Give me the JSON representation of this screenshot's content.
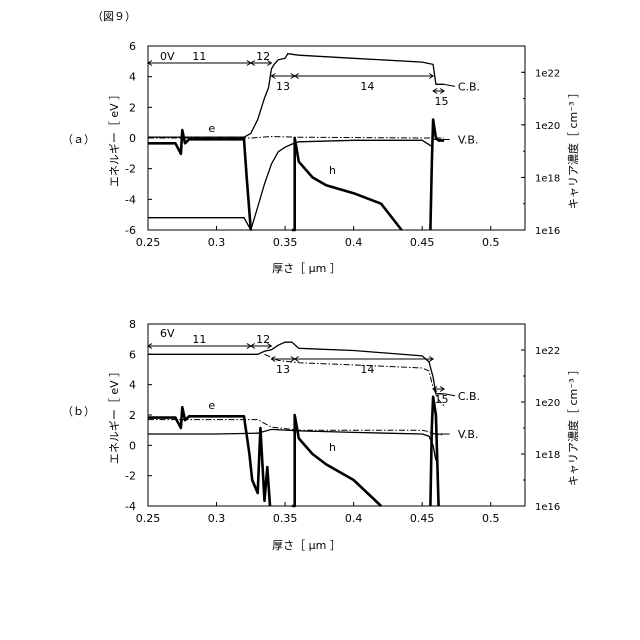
{
  "figure_label": "（図９）",
  "chart_data": [
    {
      "type": "line",
      "panel_label": "（ａ）",
      "voltage_label": "0V",
      "x_ticks": [
        "0.25",
        "0.3",
        "0.35",
        "0.4",
        "0.45",
        "0.5"
      ],
      "xlim": [
        0.25,
        0.525
      ],
      "y_left_ticks": [
        "6",
        "4",
        "2",
        "0",
        "-2",
        "-4",
        "-6"
      ],
      "ylim_left": [
        -6,
        6
      ],
      "y_right_ticks": [
        "1e22",
        "1e20",
        "1e18",
        "1e16"
      ],
      "ylim_right_log10": [
        16,
        23
      ],
      "xlabel": "厚さ［ μm ］",
      "ylabel_left": "エネルギー［ eV ］",
      "ylabel_right": "キャリア濃度［ cm⁻³ ］",
      "annotations": {
        "regions": [
          "11",
          "12",
          "13",
          "14",
          "15"
        ],
        "cb": "C.B.",
        "vb": "V.B.",
        "electron": "e",
        "hole": "h"
      },
      "series": [
        {
          "name": "C.B.",
          "axis": "left",
          "style": "solid",
          "x": [
            0.25,
            0.32,
            0.325,
            0.33,
            0.335,
            0.338,
            0.34,
            0.342,
            0.345,
            0.35,
            0.352,
            0.36,
            0.4,
            0.45,
            0.458,
            0.46,
            0.466
          ],
          "y": [
            0.05,
            0.05,
            0.3,
            1.2,
            2.6,
            3.3,
            4.5,
            4.8,
            5.1,
            5.2,
            5.5,
            5.4,
            5.2,
            4.95,
            4.8,
            3.5,
            3.5
          ]
        },
        {
          "name": "V.B.",
          "axis": "left",
          "style": "solid",
          "x": [
            0.25,
            0.32,
            0.325,
            0.33,
            0.335,
            0.34,
            0.345,
            0.35,
            0.355,
            0.36,
            0.4,
            0.45,
            0.458
          ],
          "y": [
            -5.2,
            -5.2,
            -6,
            -4.5,
            -3,
            -1.7,
            -0.9,
            -0.6,
            -0.4,
            -0.25,
            -0.15,
            -0.15,
            -0.6
          ]
        },
        {
          "name": "Fermi",
          "axis": "left",
          "style": "dashdot",
          "x": [
            0.25,
            0.325,
            0.34,
            0.36,
            0.45,
            0.466
          ],
          "y": [
            0.0,
            0.0,
            0.1,
            0.05,
            0.0,
            0.0
          ]
        },
        {
          "name": "e",
          "axis": "right",
          "style": "bold",
          "x": [
            0.25,
            0.27,
            0.274,
            0.275,
            0.277,
            0.28,
            0.3,
            0.32,
            0.322,
            0.325
          ],
          "y": [
            19.3,
            19.3,
            18.9,
            19.8,
            19.3,
            19.45,
            19.45,
            19.45,
            18,
            16
          ]
        },
        {
          "name": "h",
          "axis": "right",
          "style": "bold",
          "x": [
            0.355,
            0.357,
            0.357,
            0.36,
            0.37,
            0.38,
            0.4,
            0.42,
            0.435
          ],
          "y": [
            16,
            16,
            19.5,
            18.6,
            18.0,
            17.7,
            17.4,
            17.0,
            16
          ],
          "secondary": {
            "x": [
              0.456,
              0.457,
              0.458,
              0.46,
              0.462,
              0.466
            ],
            "y": [
              16,
              18.5,
              20.2,
              19.5,
              19.4,
              19.4
            ]
          }
        }
      ]
    },
    {
      "type": "line",
      "panel_label": "（ｂ）",
      "voltage_label": "6V",
      "x_ticks": [
        "0.25",
        "0.3",
        "0.35",
        "0.4",
        "0.45",
        "0.5"
      ],
      "xlim": [
        0.25,
        0.525
      ],
      "y_left_ticks": [
        "8",
        "6",
        "4",
        "2",
        "0",
        "-2",
        "-4"
      ],
      "ylim_left": [
        -4,
        8
      ],
      "y_right_ticks": [
        "1e22",
        "1e20",
        "1e18",
        "1e16"
      ],
      "ylim_right_log10": [
        16,
        23
      ],
      "xlabel": "厚さ［ μm ］",
      "ylabel_left": "エネルギー［ eV ］",
      "ylabel_right": "キャリア濃度［ cm⁻³ ］",
      "annotations": {
        "regions": [
          "11",
          "12",
          "13",
          "14",
          "15"
        ],
        "cb": "C.B.",
        "vb": "V.B.",
        "electron": "e",
        "hole": "h"
      },
      "series": [
        {
          "name": "C.B.",
          "axis": "left",
          "style": "solid",
          "x": [
            0.25,
            0.33,
            0.335,
            0.34,
            0.345,
            0.35,
            0.355,
            0.36,
            0.4,
            0.45,
            0.455,
            0.458,
            0.46,
            0.466
          ],
          "y": [
            6.0,
            6.0,
            6.2,
            6.3,
            6.6,
            6.8,
            6.8,
            6.4,
            6.25,
            5.9,
            5.5,
            4.5,
            3.4,
            3.4
          ]
        },
        {
          "name": "V.B.",
          "axis": "left",
          "style": "solid",
          "x": [
            0.25,
            0.3,
            0.33,
            0.34,
            0.36,
            0.4,
            0.45,
            0.455,
            0.458,
            0.46
          ],
          "y": [
            0.75,
            0.75,
            0.8,
            1.05,
            0.95,
            0.85,
            0.75,
            0.6,
            0.0,
            -1.0
          ]
        },
        {
          "name": "Fermi",
          "axis": "left",
          "style": "dashdot",
          "x": [
            0.25,
            0.33,
            0.34,
            0.36,
            0.4,
            0.45,
            0.455,
            0.458,
            0.462,
            0.466
          ],
          "y": [
            1.7,
            1.7,
            1.2,
            1.0,
            1.0,
            1.0,
            0.9,
            0.8,
            0.7,
            0.7
          ],
          "secondary": {
            "x": [
              0.335,
              0.34,
              0.345,
              0.36,
              0.4,
              0.45,
              0.455,
              0.458,
              0.462,
              0.466
            ],
            "y": [
              6.0,
              5.8,
              5.6,
              5.45,
              5.3,
              5.1,
              4.9,
              3.8,
              3.0,
              2.6
            ]
          }
        },
        {
          "name": "e",
          "axis": "right",
          "style": "bold",
          "x": [
            0.25,
            0.27,
            0.274,
            0.275,
            0.277,
            0.28,
            0.3,
            0.32,
            0.324,
            0.326,
            0.33,
            0.332,
            0.335,
            0.337,
            0.339
          ],
          "y": [
            19.4,
            19.4,
            19.0,
            19.8,
            19.3,
            19.45,
            19.45,
            19.45,
            18.0,
            17.0,
            16.5,
            19.0,
            16.2,
            17.5,
            16.0
          ]
        },
        {
          "name": "h",
          "axis": "right",
          "style": "bold",
          "x": [
            0.355,
            0.357,
            0.357,
            0.36,
            0.37,
            0.38,
            0.4,
            0.42
          ],
          "y": [
            16,
            16,
            19.5,
            18.6,
            18.0,
            17.6,
            17.0,
            16
          ],
          "secondary": {
            "x": [
              0.456,
              0.457,
              0.458,
              0.46,
              0.462
            ],
            "y": [
              16,
              19.0,
              20.2,
              19.5,
              16
            ]
          }
        }
      ]
    }
  ]
}
